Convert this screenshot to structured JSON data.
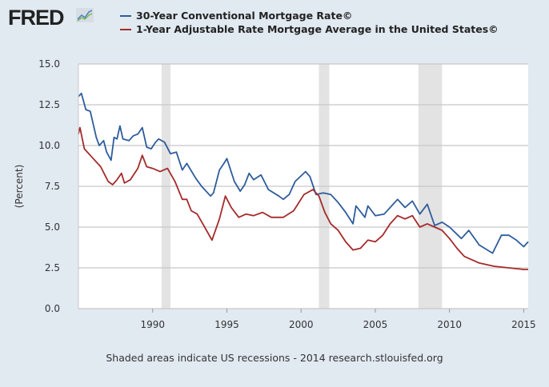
{
  "logo": {
    "text": "FRED"
  },
  "chart_data": {
    "type": "line",
    "title": "",
    "xlabel": "",
    "ylabel": "(Percent)",
    "xlim": [
      1985.0,
      2015.3
    ],
    "ylim": [
      0,
      15
    ],
    "xticks": [
      1990,
      1995,
      2000,
      2005,
      2010,
      2015
    ],
    "xtick_labels": [
      "1990",
      "1995",
      "2000",
      "2005",
      "2010",
      "2015"
    ],
    "yticks": [
      0,
      2.5,
      5,
      7.5,
      10,
      12.5,
      15
    ],
    "ytick_labels": [
      "0.0",
      "2.5",
      "5.0",
      "7.5",
      "10.0",
      "12.5",
      "15.0"
    ],
    "grid": true,
    "legend_position": "top",
    "recessions": [
      [
        1990.6,
        1991.2
      ],
      [
        2001.2,
        2001.9
      ],
      [
        2007.9,
        2009.5
      ]
    ],
    "series": [
      {
        "name": "30-Year Conventional Mortgage Rate©",
        "color": "#2e5c9c",
        "points": [
          [
            1985.0,
            13.0
          ],
          [
            1985.2,
            13.2
          ],
          [
            1985.5,
            12.2
          ],
          [
            1985.8,
            12.1
          ],
          [
            1986.2,
            10.5
          ],
          [
            1986.4,
            10.0
          ],
          [
            1986.7,
            10.3
          ],
          [
            1986.9,
            9.6
          ],
          [
            1987.2,
            9.1
          ],
          [
            1987.4,
            10.5
          ],
          [
            1987.6,
            10.4
          ],
          [
            1987.8,
            11.2
          ],
          [
            1988.0,
            10.4
          ],
          [
            1988.4,
            10.3
          ],
          [
            1988.7,
            10.6
          ],
          [
            1989.0,
            10.7
          ],
          [
            1989.3,
            11.1
          ],
          [
            1989.6,
            9.9
          ],
          [
            1989.9,
            9.8
          ],
          [
            1990.2,
            10.2
          ],
          [
            1990.4,
            10.4
          ],
          [
            1990.8,
            10.2
          ],
          [
            1991.2,
            9.5
          ],
          [
            1991.6,
            9.6
          ],
          [
            1992.0,
            8.5
          ],
          [
            1992.3,
            8.9
          ],
          [
            1992.9,
            8.0
          ],
          [
            1993.3,
            7.5
          ],
          [
            1993.9,
            6.9
          ],
          [
            1994.1,
            7.1
          ],
          [
            1994.5,
            8.5
          ],
          [
            1994.8,
            8.9
          ],
          [
            1995.0,
            9.2
          ],
          [
            1995.5,
            7.8
          ],
          [
            1995.9,
            7.2
          ],
          [
            1996.2,
            7.6
          ],
          [
            1996.5,
            8.3
          ],
          [
            1996.8,
            7.9
          ],
          [
            1997.3,
            8.2
          ],
          [
            1997.8,
            7.3
          ],
          [
            1998.5,
            6.9
          ],
          [
            1998.8,
            6.7
          ],
          [
            1999.2,
            7.0
          ],
          [
            1999.6,
            7.8
          ],
          [
            2000.3,
            8.4
          ],
          [
            2000.6,
            8.1
          ],
          [
            2001.0,
            7.0
          ],
          [
            2001.5,
            7.1
          ],
          [
            2002.0,
            7.0
          ],
          [
            2002.5,
            6.5
          ],
          [
            2003.0,
            5.9
          ],
          [
            2003.5,
            5.2
          ],
          [
            2003.7,
            6.3
          ],
          [
            2004.3,
            5.6
          ],
          [
            2004.5,
            6.3
          ],
          [
            2005.0,
            5.7
          ],
          [
            2005.6,
            5.8
          ],
          [
            2006.5,
            6.7
          ],
          [
            2007.0,
            6.2
          ],
          [
            2007.5,
            6.6
          ],
          [
            2008.0,
            5.8
          ],
          [
            2008.5,
            6.4
          ],
          [
            2009.0,
            5.1
          ],
          [
            2009.5,
            5.3
          ],
          [
            2010.0,
            5.0
          ],
          [
            2010.8,
            4.3
          ],
          [
            2011.3,
            4.8
          ],
          [
            2012.0,
            3.9
          ],
          [
            2012.9,
            3.4
          ],
          [
            2013.5,
            4.5
          ],
          [
            2014.0,
            4.5
          ],
          [
            2014.5,
            4.2
          ],
          [
            2015.0,
            3.8
          ],
          [
            2015.3,
            4.1
          ]
        ]
      },
      {
        "name": "1-Year Adjustable Rate Mortgage Average in the United States©",
        "color": "#a52a2a",
        "points": [
          [
            1985.0,
            10.7
          ],
          [
            1985.1,
            11.1
          ],
          [
            1985.4,
            9.8
          ],
          [
            1986.0,
            9.2
          ],
          [
            1986.5,
            8.7
          ],
          [
            1987.0,
            7.8
          ],
          [
            1987.3,
            7.6
          ],
          [
            1987.6,
            7.9
          ],
          [
            1987.9,
            8.3
          ],
          [
            1988.1,
            7.7
          ],
          [
            1988.5,
            7.9
          ],
          [
            1989.0,
            8.6
          ],
          [
            1989.3,
            9.4
          ],
          [
            1989.6,
            8.7
          ],
          [
            1990.0,
            8.6
          ],
          [
            1990.5,
            8.4
          ],
          [
            1991.0,
            8.6
          ],
          [
            1991.5,
            7.8
          ],
          [
            1992.0,
            6.7
          ],
          [
            1992.3,
            6.7
          ],
          [
            1992.6,
            6.0
          ],
          [
            1993.0,
            5.8
          ],
          [
            1993.5,
            5.0
          ],
          [
            1994.0,
            4.2
          ],
          [
            1994.5,
            5.5
          ],
          [
            1994.9,
            6.9
          ],
          [
            1995.3,
            6.2
          ],
          [
            1995.8,
            5.6
          ],
          [
            1996.3,
            5.8
          ],
          [
            1996.8,
            5.7
          ],
          [
            1997.4,
            5.9
          ],
          [
            1998.0,
            5.6
          ],
          [
            1998.8,
            5.6
          ],
          [
            1999.5,
            6.0
          ],
          [
            2000.2,
            7.0
          ],
          [
            2000.8,
            7.3
          ],
          [
            2001.2,
            6.9
          ],
          [
            2001.6,
            5.9
          ],
          [
            2002.0,
            5.2
          ],
          [
            2002.5,
            4.8
          ],
          [
            2003.0,
            4.1
          ],
          [
            2003.5,
            3.6
          ],
          [
            2004.0,
            3.7
          ],
          [
            2004.5,
            4.2
          ],
          [
            2005.0,
            4.1
          ],
          [
            2005.5,
            4.5
          ],
          [
            2006.0,
            5.2
          ],
          [
            2006.5,
            5.7
          ],
          [
            2007.0,
            5.5
          ],
          [
            2007.5,
            5.7
          ],
          [
            2008.0,
            5.0
          ],
          [
            2008.5,
            5.2
          ],
          [
            2009.0,
            5.0
          ],
          [
            2009.5,
            4.8
          ],
          [
            2010.0,
            4.3
          ],
          [
            2010.5,
            3.7
          ],
          [
            2011.0,
            3.2
          ],
          [
            2012.0,
            2.8
          ],
          [
            2013.0,
            2.6
          ],
          [
            2014.0,
            2.5
          ],
          [
            2015.0,
            2.4
          ],
          [
            2015.3,
            2.4
          ]
        ]
      }
    ]
  },
  "footer": "Shaded areas indicate US recessions - 2014 research.stlouisfed.org"
}
